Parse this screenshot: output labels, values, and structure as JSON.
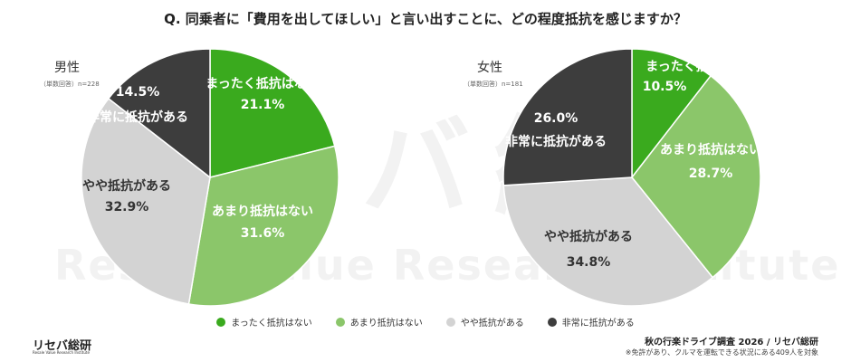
{
  "question": "Q. 同乗者に「費用を出してほしい」と言い出すことに、どの程度抵抗を感じますか？",
  "watermark": {
    "main": "リセバ総研",
    "sub": "Resale Value Researchinstitute"
  },
  "colors": {
    "dark_green": "#3aaa1e",
    "light_green": "#8bc66a",
    "light_gray": "#d3d3d3",
    "dark_gray": "#3d3d3d",
    "white_text": "#ffffff",
    "black_text": "#333333"
  },
  "chart_data": [
    {
      "type": "pie",
      "title": "男性",
      "note": "（単数回答）n=228",
      "categories": [
        "まったく抵抗はない",
        "あまり抵抗はない",
        "やや抵抗がある",
        "非常に抵抗がある"
      ],
      "values": [
        21.1,
        31.6,
        32.9,
        14.5
      ],
      "value_labels": [
        "21.1%",
        "31.6%",
        "32.9%",
        "14.5%"
      ]
    },
    {
      "type": "pie",
      "title": "女性",
      "note": "（単数回答）n=181",
      "categories": [
        "まったく抵抗はない",
        "あまり抵抗はない",
        "やや抵抗がある",
        "非常に抵抗がある"
      ],
      "values": [
        10.5,
        28.7,
        34.8,
        26.0
      ],
      "value_labels": [
        "10.5%",
        "28.7%",
        "34.8%",
        "26.0%"
      ]
    }
  ],
  "legend": [
    {
      "label": "まったく抵抗はない",
      "color": "#3aaa1e"
    },
    {
      "label": "あまり抵抗はない",
      "color": "#8bc66a"
    },
    {
      "label": "やや抵抗がある",
      "color": "#d3d3d3"
    },
    {
      "label": "非常に抵抗がある",
      "color": "#3d3d3d"
    }
  ],
  "logo": {
    "name": "リセバ総研",
    "sub": "Resale Value Research Institute"
  },
  "footer": {
    "survey": "秋の行楽ドライブ調査 2026 / リセバ総研",
    "note": "※免許があり、クルマを運転できる状況にある409人を対象"
  }
}
